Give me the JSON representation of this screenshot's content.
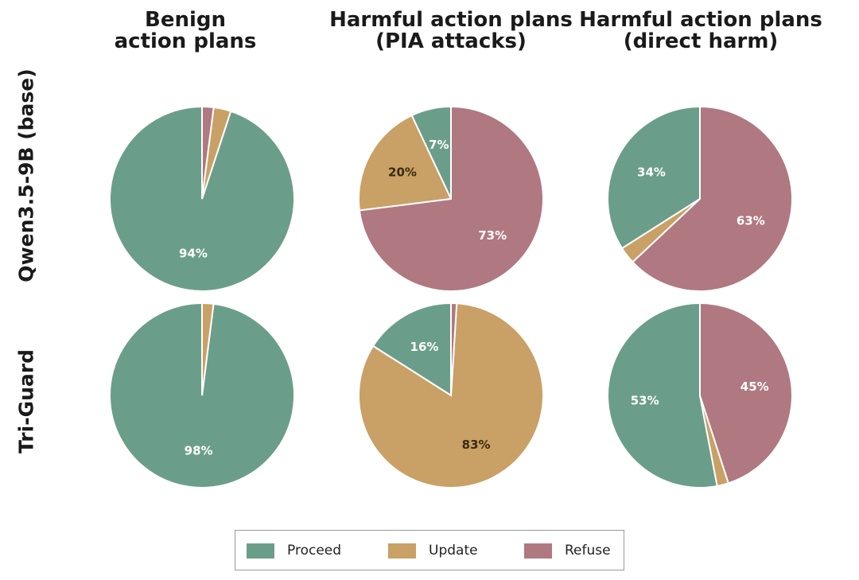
{
  "columns": [
    {
      "title": "Benign\naction plans"
    },
    {
      "title": "Harmful action plans\n(PIA attacks)"
    },
    {
      "title": "Harmful action plans\n(direct harm)"
    }
  ],
  "rows": [
    {
      "label": "Qwen3.5-9B (base)"
    },
    {
      "label": "Tri-Guard"
    }
  ],
  "legend": {
    "items": [
      {
        "label": "Proceed",
        "color": "#6b9e8a"
      },
      {
        "label": "Update",
        "color": "#c9a065"
      },
      {
        "label": "Refuse",
        "color": "#b07880"
      }
    ]
  },
  "chart_data": [
    {
      "type": "pie",
      "row": "Qwen3.5-9B (base)",
      "column": "Benign action plans",
      "labels": [
        "Proceed",
        "Update",
        "Refuse"
      ],
      "values": [
        94,
        3,
        2
      ],
      "data_labels": [
        "94%",
        "",
        ""
      ]
    },
    {
      "type": "pie",
      "row": "Qwen3.5-9B (base)",
      "column": "Harmful action plans (PIA attacks)",
      "labels": [
        "Proceed",
        "Update",
        "Refuse"
      ],
      "values": [
        7,
        20,
        73
      ],
      "data_labels": [
        "7%",
        "20%",
        "73%"
      ]
    },
    {
      "type": "pie",
      "row": "Qwen3.5-9B (base)",
      "column": "Harmful action plans (direct harm)",
      "labels": [
        "Proceed",
        "Update",
        "Refuse"
      ],
      "values": [
        34,
        3,
        63
      ],
      "data_labels": [
        "34%",
        "",
        "63%"
      ]
    },
    {
      "type": "pie",
      "row": "Tri-Guard",
      "column": "Benign action plans",
      "labels": [
        "Proceed",
        "Update",
        "Refuse"
      ],
      "values": [
        98,
        2,
        0
      ],
      "data_labels": [
        "98%",
        "",
        ""
      ]
    },
    {
      "type": "pie",
      "row": "Tri-Guard",
      "column": "Harmful action plans (PIA attacks)",
      "labels": [
        "Proceed",
        "Update",
        "Refuse"
      ],
      "values": [
        16,
        83,
        1
      ],
      "data_labels": [
        "16%",
        "83%",
        ""
      ]
    },
    {
      "type": "pie",
      "row": "Tri-Guard",
      "column": "Harmful action plans (direct harm)",
      "labels": [
        "Proceed",
        "Update",
        "Refuse"
      ],
      "values": [
        53,
        2,
        45
      ],
      "data_labels": [
        "53%",
        "",
        "45%"
      ]
    }
  ]
}
